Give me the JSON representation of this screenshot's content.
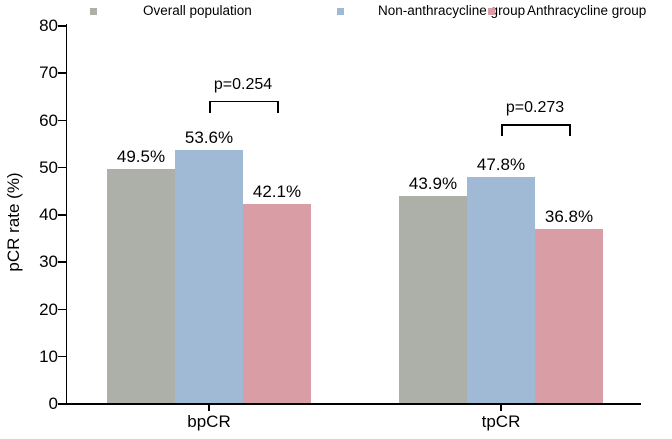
{
  "chart_data": {
    "type": "bar",
    "title": "",
    "xlabel": "",
    "ylabel": "pCR rate (%)",
    "ylim": [
      0,
      80
    ],
    "ytick_step": 10,
    "grid": false,
    "legend_position": "top",
    "categories": [
      "bpCR",
      "tpCR"
    ],
    "series": [
      {
        "name": "Overall population",
        "color": "#acb0a9",
        "values": [
          49.5,
          43.9
        ],
        "labels": [
          "49.5%",
          "43.9%"
        ]
      },
      {
        "name": "Non-anthracycline group",
        "color": "#a0b9d4",
        "values": [
          53.6,
          47.8
        ],
        "labels": [
          "53.6%",
          "47.8%"
        ]
      },
      {
        "name": "Anthracycline group",
        "color": "#d99ea5",
        "values": [
          42.1,
          36.8
        ],
        "labels": [
          "42.1%",
          "36.8%"
        ]
      }
    ],
    "annotations": [
      {
        "text": "p=0.254",
        "category": "bpCR",
        "from_series": "Non-anthracycline group",
        "to_series": "Anthracycline group",
        "y": 64
      },
      {
        "text": "p=0.273",
        "category": "tpCR",
        "from_series": "Non-anthracycline group",
        "to_series": "Anthracycline group",
        "y": 59
      }
    ],
    "axis_color": "#000000",
    "background_color": "#ffffff"
  }
}
